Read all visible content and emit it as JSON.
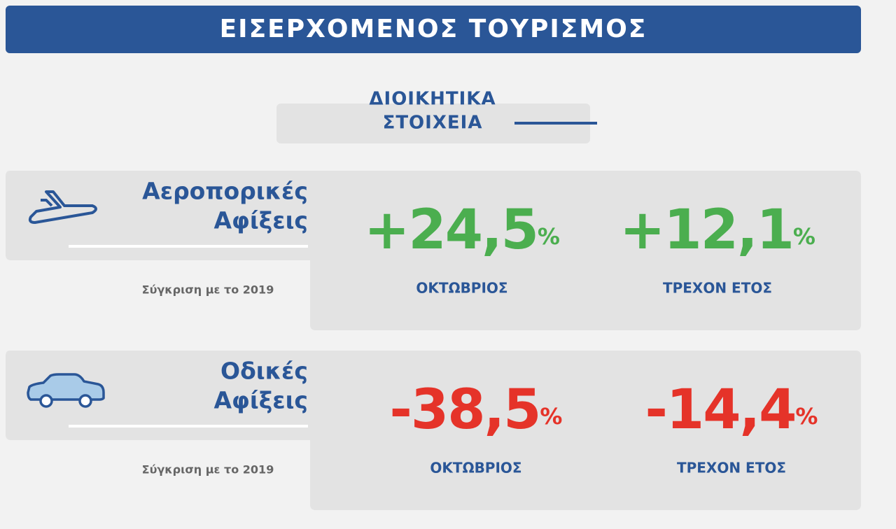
{
  "header": {
    "title": "ΕΙΣΕΡΧΟΜΕΝΟΣ ΤΟΥΡΙΣΜΟΣ"
  },
  "subtitle": {
    "lines": [
      "ΔΙΟΙΚΗΤΙΚΑ",
      "ΣΤΟΙΧΕΙΑ"
    ]
  },
  "sections": [
    {
      "title_lines": [
        "Αεροπορικές",
        "Αφίξεις"
      ],
      "comparison": "Σύγκριση με το 2019",
      "stats": [
        {
          "value": "+24,5",
          "unit": "%",
          "label": "ΟΚΤΩΒΡΙΟΣ"
        },
        {
          "value": "+12,1",
          "unit": "%",
          "label": "ΤΡΕΧΟΝ ΕΤΟΣ"
        }
      ]
    },
    {
      "title_lines": [
        "Οδικές",
        "Αφίξεις"
      ],
      "comparison": "Σύγκριση με το 2019",
      "stats": [
        {
          "value": "-38,5",
          "unit": "%",
          "label": "ΟΚΤΩΒΡΙΟΣ"
        },
        {
          "value": "-14,4",
          "unit": "%",
          "label": "ΤΡΕΧΟΝ ΕΤΟΣ"
        }
      ]
    }
  ]
}
